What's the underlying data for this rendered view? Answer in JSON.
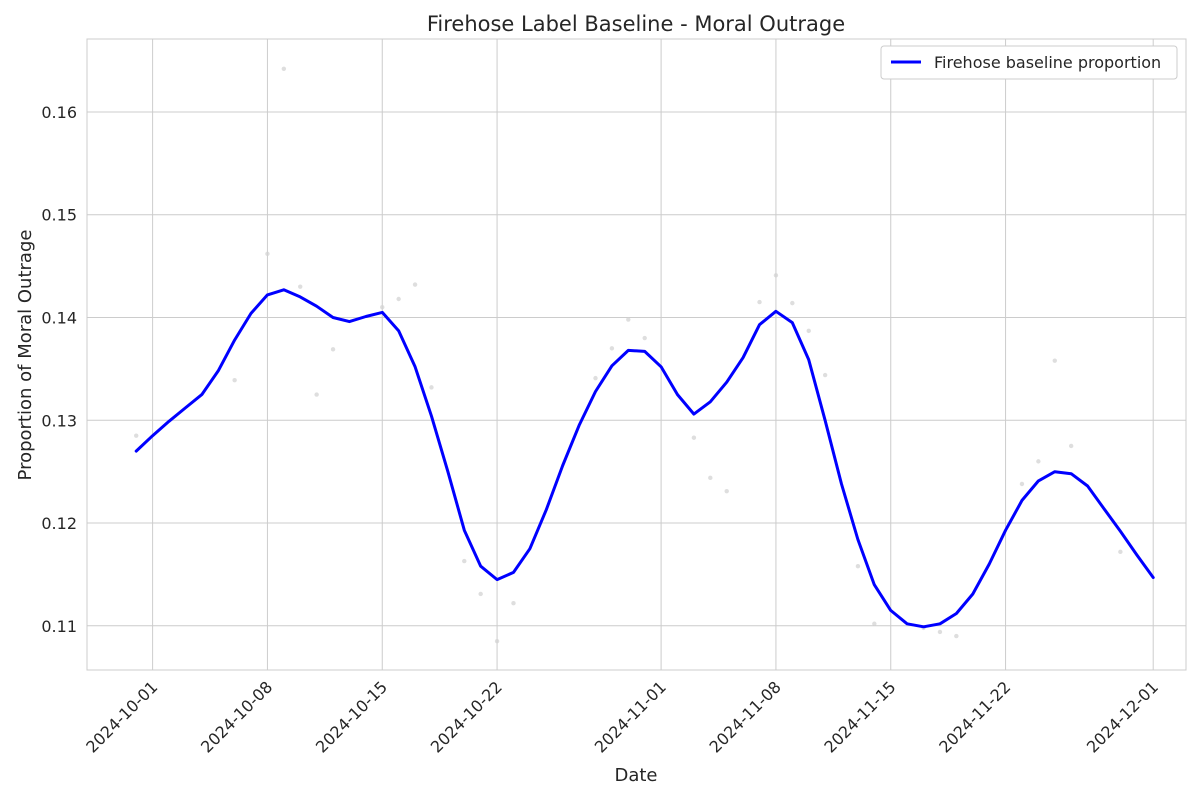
{
  "chart_data": {
    "type": "line",
    "title": "Firehose Label Baseline - Moral Outrage",
    "xlabel": "Date",
    "ylabel": "Proportion of Moral Outrage",
    "x_range": [
      "2024-09-27",
      "2024-12-03"
    ],
    "ylim": [
      0.1057,
      0.1671
    ],
    "grid": true,
    "legend_position": "top-right",
    "x_tick_labels": [
      "2024-10-01",
      "2024-10-08",
      "2024-10-15",
      "2024-10-22",
      "2024-11-01",
      "2024-11-08",
      "2024-11-15",
      "2024-11-22",
      "2024-12-01"
    ],
    "y_tick_labels": [
      "0.11",
      "0.12",
      "0.13",
      "0.14",
      "0.15",
      "0.16"
    ],
    "y_tick_values": [
      0.11,
      0.12,
      0.13,
      0.14,
      0.15,
      0.16
    ],
    "colors": {
      "line": "#0000ff",
      "points": "#d3d3d3",
      "grid": "#cccccc",
      "axes": "#cccccc"
    },
    "series": [
      {
        "name": "Firehose baseline proportion",
        "kind": "line",
        "x": [
          "2024-09-30",
          "2024-10-01",
          "2024-10-02",
          "2024-10-03",
          "2024-10-04",
          "2024-10-05",
          "2024-10-06",
          "2024-10-07",
          "2024-10-08",
          "2024-10-09",
          "2024-10-10",
          "2024-10-11",
          "2024-10-12",
          "2024-10-13",
          "2024-10-14",
          "2024-10-15",
          "2024-10-16",
          "2024-10-17",
          "2024-10-18",
          "2024-10-19",
          "2024-10-20",
          "2024-10-21",
          "2024-10-22",
          "2024-10-23",
          "2024-10-24",
          "2024-10-25",
          "2024-10-26",
          "2024-10-27",
          "2024-10-28",
          "2024-10-29",
          "2024-10-30",
          "2024-10-31",
          "2024-11-01",
          "2024-11-02",
          "2024-11-03",
          "2024-11-04",
          "2024-11-05",
          "2024-11-06",
          "2024-11-07",
          "2024-11-08",
          "2024-11-09",
          "2024-11-10",
          "2024-11-11",
          "2024-11-12",
          "2024-11-13",
          "2024-11-14",
          "2024-11-15",
          "2024-11-16",
          "2024-11-17",
          "2024-11-18",
          "2024-11-19",
          "2024-11-20",
          "2024-11-21",
          "2024-11-22",
          "2024-11-23",
          "2024-11-24",
          "2024-11-25",
          "2024-11-26",
          "2024-11-27",
          "2024-11-28",
          "2024-11-29",
          "2024-11-30",
          "2024-12-01"
        ],
        "y": [
          0.127,
          0.1285,
          0.1299,
          0.1312,
          0.1325,
          0.1348,
          0.1378,
          0.1404,
          0.1422,
          0.1427,
          0.142,
          0.1411,
          0.14,
          0.1396,
          0.1401,
          0.1405,
          0.1387,
          0.1352,
          0.1304,
          0.125,
          0.1193,
          0.1158,
          0.1145,
          0.1152,
          0.1175,
          0.1213,
          0.1256,
          0.1295,
          0.1328,
          0.1353,
          0.1368,
          0.1367,
          0.1352,
          0.1325,
          0.1306,
          0.1318,
          0.1337,
          0.1361,
          0.1393,
          0.1406,
          0.1395,
          0.1359,
          0.13,
          0.1238,
          0.1184,
          0.114,
          0.1115,
          0.1102,
          0.1099,
          0.1102,
          0.1112,
          0.1131,
          0.116,
          0.1193,
          0.1222,
          0.1241,
          0.125,
          0.1248,
          0.1236,
          0.1214,
          0.1192,
          0.1169,
          0.1147
        ]
      },
      {
        "name": "",
        "kind": "scatter",
        "x": [
          "2024-09-30",
          "2024-10-06",
          "2024-10-08",
          "2024-10-09",
          "2024-10-10",
          "2024-10-11",
          "2024-10-12",
          "2024-10-15",
          "2024-10-16",
          "2024-10-17",
          "2024-10-18",
          "2024-10-20",
          "2024-10-21",
          "2024-10-22",
          "2024-10-23",
          "2024-10-28",
          "2024-10-29",
          "2024-10-30",
          "2024-10-31",
          "2024-11-03",
          "2024-11-04",
          "2024-11-05",
          "2024-11-07",
          "2024-11-08",
          "2024-11-09",
          "2024-11-10",
          "2024-11-11",
          "2024-11-13",
          "2024-11-14",
          "2024-11-17",
          "2024-11-18",
          "2024-11-19",
          "2024-11-23",
          "2024-11-24",
          "2024-11-25",
          "2024-11-26",
          "2024-11-29"
        ],
        "y": [
          0.1285,
          0.1339,
          0.1462,
          0.1642,
          0.143,
          0.1325,
          0.1369,
          0.141,
          0.1418,
          0.1432,
          0.1332,
          0.1163,
          0.1131,
          0.1085,
          0.1122,
          0.1341,
          0.137,
          0.1398,
          0.138,
          0.1283,
          0.1244,
          0.1231,
          0.1415,
          0.1441,
          0.1414,
          0.1387,
          0.1344,
          0.1158,
          0.1102,
          0.1098,
          0.1094,
          0.109,
          0.1238,
          0.126,
          0.1358,
          0.1275,
          0.1172
        ]
      }
    ]
  }
}
